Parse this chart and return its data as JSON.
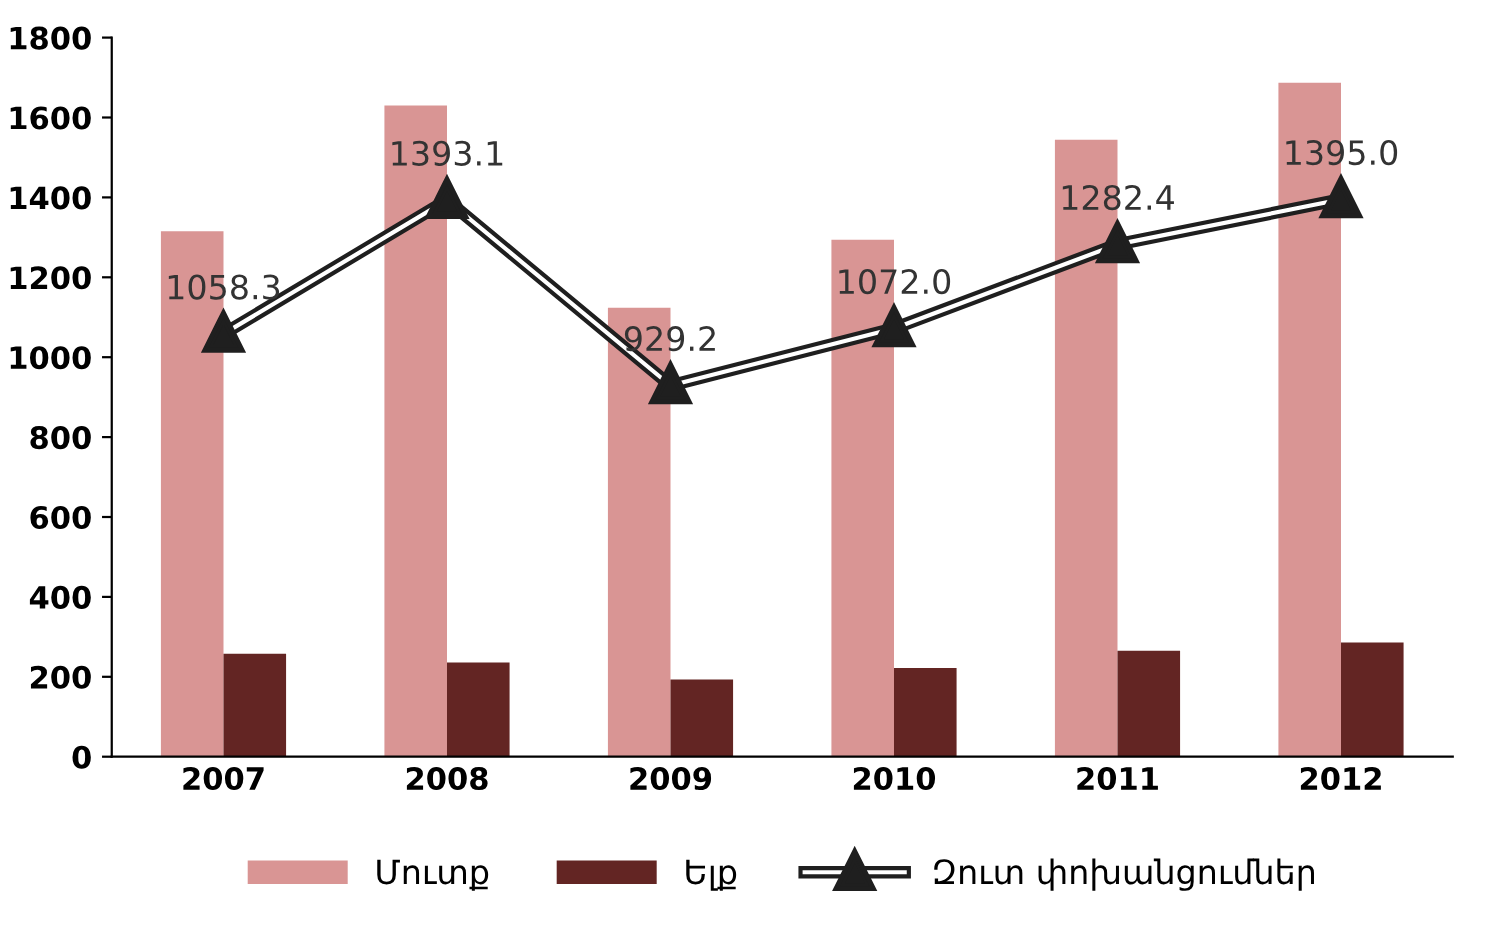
{
  "chart_data": {
    "type": "bar",
    "categories": [
      "2007",
      "2008",
      "2009",
      "2010",
      "2011",
      "2012"
    ],
    "series": [
      {
        "name": "Մուտք",
        "color": "#d99594",
        "values": [
          1315,
          1630,
          1124,
          1294,
          1544,
          1687
        ]
      },
      {
        "name": "Ելք",
        "color": "#632523",
        "values": [
          258,
          236,
          193,
          222,
          265,
          286
        ]
      },
      {
        "name": "Զուտ փոխանցումներ",
        "type": "line",
        "color": "#1f1f1f",
        "marker": "triangle",
        "values": [
          1058.3,
          1393.1,
          929.2,
          1072.0,
          1282.4,
          1395.0
        ],
        "value_labels": [
          "1058.3",
          "1393.1",
          "929.2",
          "1072.0",
          "1282.4",
          "1395.0"
        ]
      }
    ],
    "ylim": [
      0,
      1800
    ],
    "yticks": [
      0,
      200,
      400,
      600,
      800,
      1000,
      1200,
      1400,
      1600,
      1800
    ],
    "grid": false,
    "legend": "bottom"
  }
}
